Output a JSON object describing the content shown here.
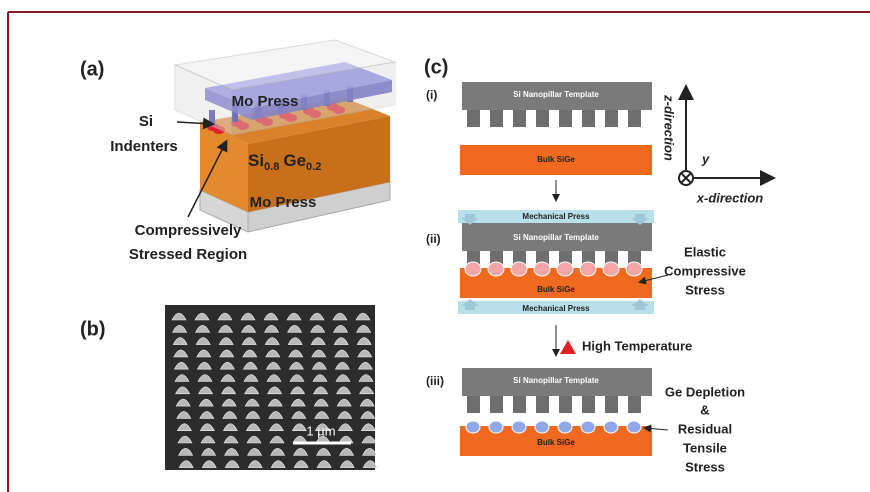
{
  "panels": {
    "a": {
      "label": "(a)",
      "top_press": "Mo Press",
      "indenter_label": [
        "Si",
        "Indenters"
      ],
      "alloy": {
        "si": "Si",
        "si_sub": "0.8",
        "ge": "Ge",
        "ge_sub": "0.2"
      },
      "bottom_press": "Mo Press",
      "region_label": [
        "Compressively",
        "Stressed Region"
      ]
    },
    "b": {
      "label": "(b)",
      "scale_bar": "1 µm"
    },
    "c": {
      "label": "(c)",
      "steps": [
        {
          "label": "(i)",
          "template": "Si Nanopillar Template",
          "substrate": "Bulk SiGe"
        },
        {
          "label": "(ii)",
          "press_top": "Mechanical Press",
          "template": "Si Nanopillar Template",
          "substrate": "Bulk SiGe",
          "press_bottom": "Mechanical Press",
          "annotation": [
            "Elastic",
            "Compressive",
            "Stress"
          ]
        },
        {
          "label": "(iii)",
          "template": "Si Nanopillar Template",
          "substrate": "Bulk SiGe",
          "annotation": [
            "Ge Depletion",
            "&",
            "Residual",
            "Tensile",
            "Stress"
          ]
        }
      ],
      "process": "High Temperature",
      "axes": {
        "z": "z-direction",
        "y": "y",
        "x": "x-direction"
      }
    }
  }
}
